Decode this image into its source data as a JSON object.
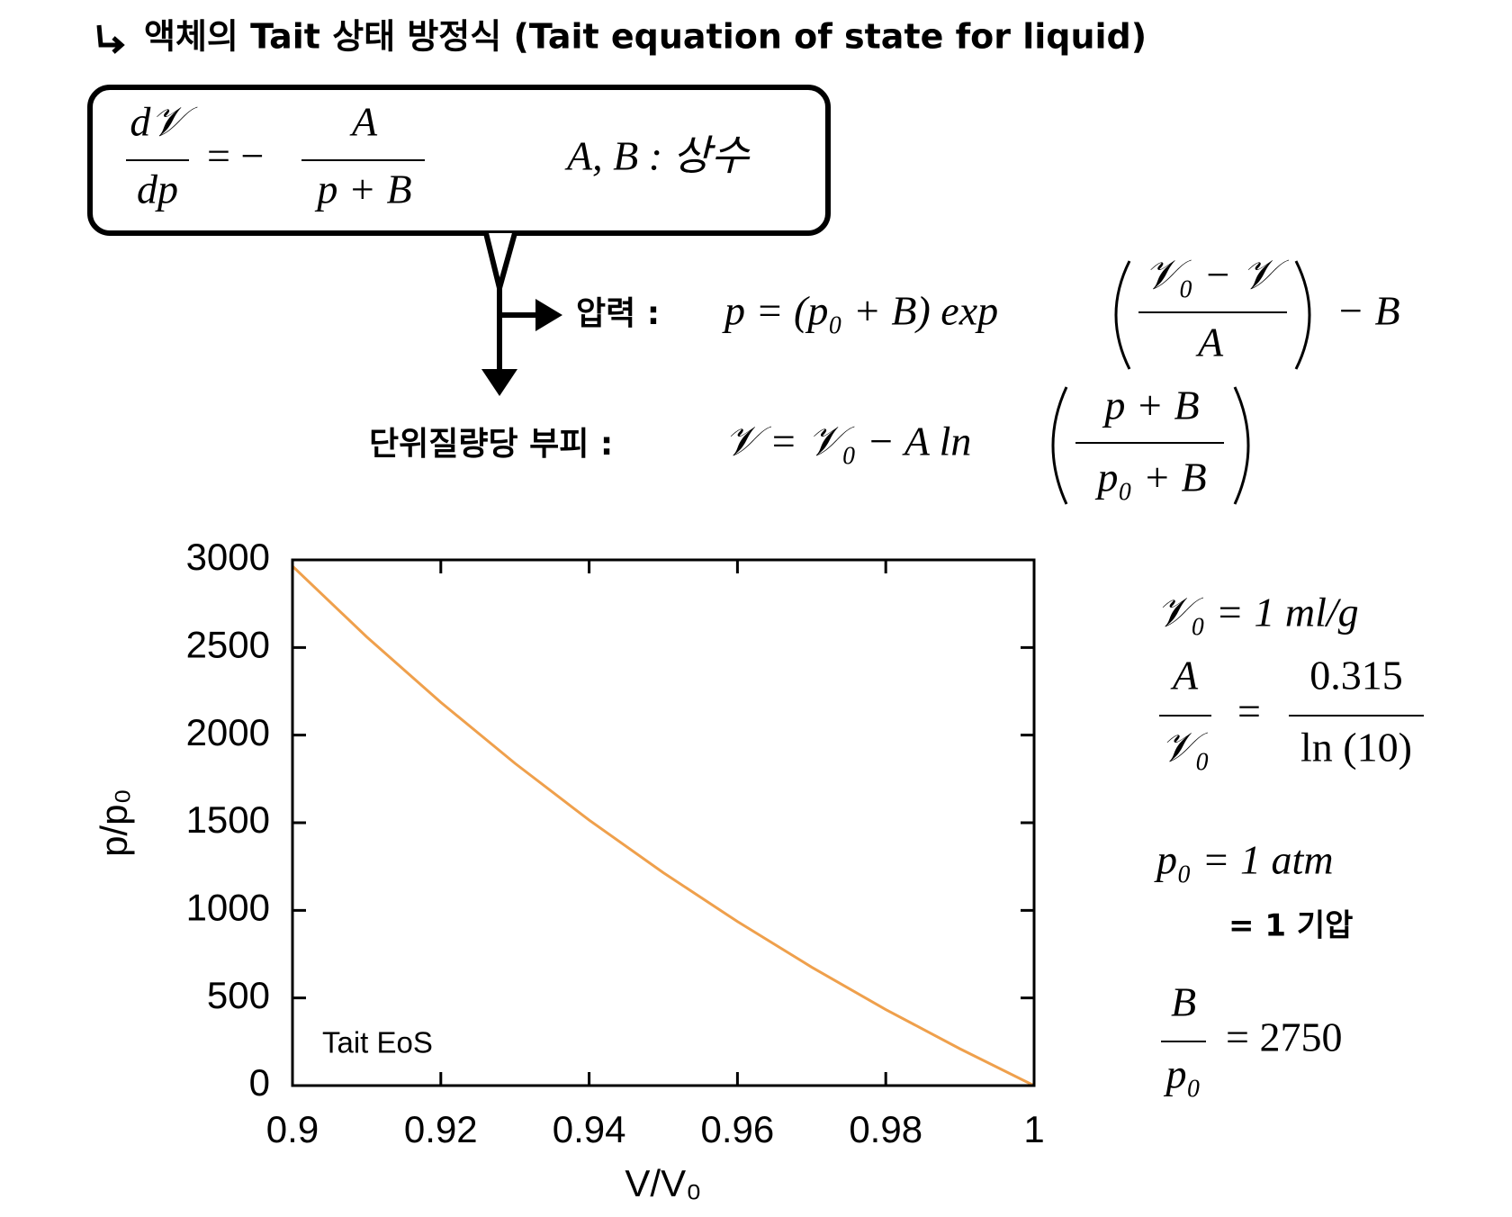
{
  "header": {
    "title": "액체의 Tait 상태 방정식 (Tait equation of state for liquid)"
  },
  "box": {
    "lhs_num": "d𝒱",
    "lhs_den": "dp",
    "eq": "= −",
    "rhs_num": "A",
    "rhs_den": "p + B",
    "constants": "A, B : 상수"
  },
  "pressure": {
    "label": "압력 :",
    "expr": "p = (p₀ + B) exp",
    "num": "𝒱₀ − 𝒱",
    "den": "A",
    "tail": "− B"
  },
  "volume": {
    "label": "단위질량당 부피 :",
    "expr": "𝒱 = 𝒱₀ − A ln",
    "num": "p + B",
    "den": "p₀ + B"
  },
  "params": {
    "v0": "𝒱₀ = 1 ml/g",
    "a_num": "A",
    "a_den": "𝒱₀",
    "a_eq": "=",
    "a_rhs_num": "0.315",
    "a_rhs_den": "ln (10)",
    "p0": "p₀ = 1 atm",
    "p0_note": "= 1 기압",
    "b_num": "B",
    "b_den": "p₀",
    "b_rhs": "= 2750"
  },
  "chart_data": {
    "type": "line",
    "x_label": "V/V₀",
    "y_label": "p/p₀",
    "x": [
      0.9,
      0.91,
      0.92,
      0.93,
      0.94,
      0.95,
      0.96,
      0.97,
      0.98,
      0.99,
      1.0
    ],
    "series": [
      {
        "name": "Tait EoS",
        "color": "#efa04c",
        "values": [
          2964,
          2561,
          2187,
          1839,
          1515,
          1215,
          936,
          676,
          434,
          210,
          0
        ]
      }
    ],
    "xlim": [
      0.9,
      1
    ],
    "ylim": [
      0,
      3000
    ],
    "xticks": [
      0.9,
      0.92,
      0.94,
      0.96,
      0.98,
      1
    ],
    "yticks": [
      0,
      500,
      1000,
      1500,
      2000,
      2500,
      3000
    ],
    "legend": "bottom-left"
  }
}
